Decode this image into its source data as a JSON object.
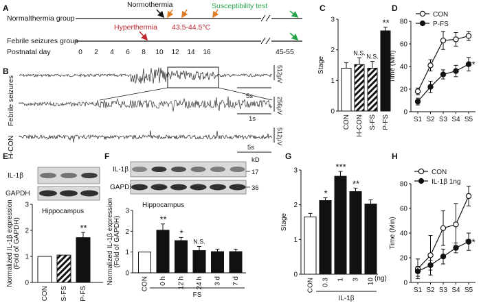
{
  "panel_letters": [
    "A",
    "B",
    "C",
    "D",
    "E",
    "F",
    "G",
    "H"
  ],
  "panelA": {
    "normal_label": "Normalthermia group",
    "febrile_label": "Febrile seizures group",
    "postnatal_label": "Postnatal day",
    "normothermia": "Normothermia",
    "hyperthermia": "Hyperthermia",
    "temp_range": "43.5-44.5°C",
    "test_label": "Susceptibility test",
    "days": [
      "0",
      "2",
      "4",
      "6",
      "8",
      "10",
      "12",
      "14",
      "16"
    ],
    "test_days": "45-55",
    "colors": {
      "dark_arrow": "#111111",
      "orange": "#e07b25",
      "red": "#c0242c",
      "green": "#27a24a"
    }
  },
  "panelB": {
    "fs_label": "Febrile seizures",
    "hcon_label": "H-CON",
    "scale_top": "5s",
    "scale_mid": "1s",
    "scale_bot": "5s",
    "amp_top": "512μV",
    "amp_mid": "256μV",
    "amp_bot": "512μV"
  },
  "blots": {
    "E": {
      "il1b": "IL-1β",
      "gapdh": "GAPDH",
      "region": "Hippocampus"
    },
    "F": {
      "il1b": "IL-1β",
      "gapdh": "GAPDH",
      "region": "Hippocampus",
      "kd": "kD",
      "kd17": "17",
      "kd36": "36"
    }
  },
  "chart_data": [
    {
      "panel": "C",
      "type": "bar",
      "ylabel": "Stage",
      "ylim": [
        0,
        3
      ],
      "yticks": [
        "0",
        "1",
        "2",
        "3"
      ],
      "categories": [
        "CON",
        "H-CON",
        "S-FS",
        "P-FS"
      ],
      "values": [
        1.4,
        1.52,
        1.4,
        2.62
      ],
      "errors": [
        0.18,
        0.22,
        0.22,
        0.12
      ],
      "fills": [
        "white",
        "hatch",
        "hatch",
        "black"
      ],
      "annotations": [
        "",
        "N.S.",
        "N.S.",
        "**"
      ]
    },
    {
      "panel": "D",
      "type": "line",
      "ylabel": "Time (Min)",
      "ylim": [
        0,
        80
      ],
      "yticks": [
        "0",
        "20",
        "40",
        "60",
        "80"
      ],
      "categories": [
        "S1",
        "S2",
        "S3",
        "S4",
        "S5"
      ],
      "series": [
        {
          "name": "CON",
          "marker": "open",
          "values": [
            18,
            41,
            63,
            64,
            67
          ],
          "errors": [
            3,
            5,
            8,
            6,
            4
          ]
        },
        {
          "name": "P-FS",
          "marker": "filled",
          "values": [
            9,
            22,
            33,
            36,
            42
          ],
          "errors": [
            3,
            5,
            4,
            5,
            6
          ]
        }
      ],
      "annotation": "**"
    },
    {
      "panel": "E",
      "type": "bar",
      "ylabel": "Normalized IL-1β expression (Fold of GAPDH)",
      "ylabel_lines": [
        "Normalized IL-1β expression",
        "(Fold of GAPDH)"
      ],
      "ylim": [
        0,
        3
      ],
      "yticks": [
        "0",
        "1",
        "2",
        "3"
      ],
      "categories": [
        "CON",
        "S-FS",
        "P-FS"
      ],
      "values": [
        1.0,
        1.05,
        1.72
      ],
      "errors": [
        0,
        0,
        0.2
      ],
      "fills": [
        "white",
        "hatch",
        "black"
      ],
      "annotations": [
        "",
        "",
        "**"
      ]
    },
    {
      "panel": "F",
      "type": "bar",
      "ylabel": "Normalized IL-1β expression (Fold of GAPDH)",
      "ylabel_lines": [
        "Normalized IL-1β expression",
        "(Fold of GAPDH)"
      ],
      "ylim": [
        0,
        3
      ],
      "yticks": [
        "0",
        "1",
        "2",
        "3"
      ],
      "categories": [
        "CON",
        "0 h",
        "12 h",
        "24 h",
        "3 d",
        "7 d"
      ],
      "group_label": "FS",
      "values": [
        1.0,
        2.05,
        1.55,
        1.07,
        1.02,
        1.02
      ],
      "errors": [
        0,
        0.3,
        0.15,
        0.2,
        0.12,
        0.12
      ],
      "fills": [
        "white",
        "black",
        "black",
        "black",
        "black",
        "black"
      ],
      "annotations": [
        "",
        "**",
        "*",
        "N.S.",
        "",
        ""
      ]
    },
    {
      "panel": "G",
      "type": "bar",
      "ylabel": "Stage",
      "ylim": [
        0,
        3
      ],
      "yticks": [
        "0",
        "1",
        "2",
        "3"
      ],
      "categories": [
        "CON",
        "0.3",
        "1",
        "3",
        "10"
      ],
      "unit": "(ng)",
      "group_label": "IL-1β",
      "values": [
        1.65,
        2.12,
        2.82,
        2.38,
        2.02
      ],
      "errors": [
        0.1,
        0.08,
        0.14,
        0.1,
        0.12
      ],
      "fills": [
        "white",
        "black",
        "black",
        "black",
        "black"
      ],
      "annotations": [
        "",
        "*",
        "***",
        "**",
        ""
      ]
    },
    {
      "panel": "H",
      "type": "line",
      "ylabel": "Time (Min)",
      "ylim": [
        0,
        80
      ],
      "yticks": [
        "0",
        "20",
        "40",
        "60",
        "80"
      ],
      "categories": [
        "S1",
        "S2",
        "S3",
        "S4",
        "S5"
      ],
      "series": [
        {
          "name": "CON",
          "marker": "open",
          "values": [
            11,
            22,
            44,
            47,
            70
          ],
          "errors": [
            8,
            16,
            14,
            17,
            8
          ]
        },
        {
          "name": "IL-1β 1ng",
          "marker": "filled",
          "values": [
            9,
            14,
            21,
            28,
            33
          ],
          "errors": [
            4,
            4,
            6,
            4,
            7
          ]
        }
      ],
      "annotation": "***"
    }
  ]
}
